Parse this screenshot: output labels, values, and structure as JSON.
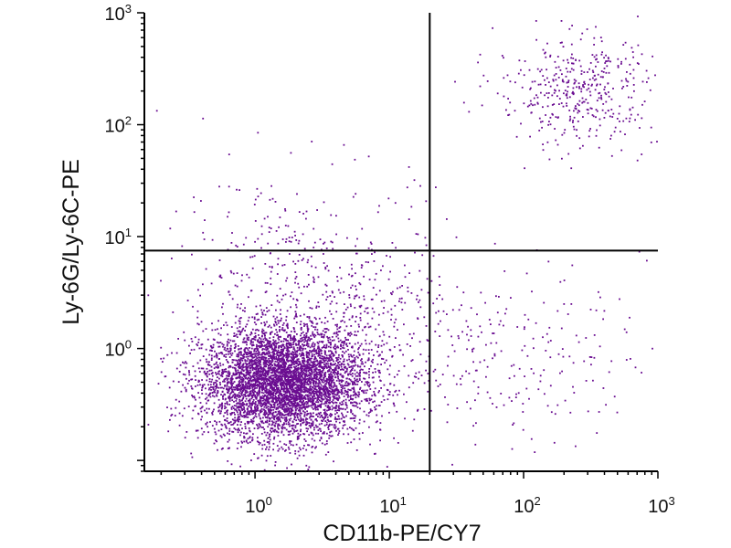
{
  "chart_data": {
    "type": "scatter",
    "title": "",
    "xlabel": "CD11b-PE/CY7",
    "ylabel": "Ly-6G/Ly-6C-PE",
    "x_scale": "log",
    "y_scale": "log",
    "xlim": [
      0.15,
      1000
    ],
    "ylim": [
      0.08,
      1000
    ],
    "xticks": [
      {
        "value": 1,
        "base": "10",
        "exp": "0"
      },
      {
        "value": 10,
        "base": "10",
        "exp": "1"
      },
      {
        "value": 100,
        "base": "10",
        "exp": "2"
      },
      {
        "value": 1000,
        "base": "10",
        "exp": "3"
      }
    ],
    "yticks": [
      {
        "value": 1,
        "base": "10",
        "exp": "0"
      },
      {
        "value": 10,
        "base": "10",
        "exp": "1"
      },
      {
        "value": 100,
        "base": "10",
        "exp": "2"
      },
      {
        "value": 1000,
        "base": "10",
        "exp": "3"
      }
    ],
    "gates": {
      "x": 20,
      "y": 7.5
    },
    "grid": false,
    "marker_color": "#6a0d91",
    "populations": [
      {
        "center": [
          1.6,
          0.5
        ],
        "spread": [
          0.55,
          0.45
        ],
        "count": 5000
      },
      {
        "center": [
          3.5,
          1.8
        ],
        "spread": [
          0.9,
          0.8
        ],
        "count": 600
      },
      {
        "center": [
          2,
          12
        ],
        "spread": [
          0.8,
          0.6
        ],
        "count": 110
      },
      {
        "center": [
          250,
          200
        ],
        "spread": [
          0.55,
          0.45
        ],
        "count": 420
      },
      {
        "center": [
          80,
          0.9
        ],
        "spread": [
          0.9,
          0.7
        ],
        "count": 220
      }
    ]
  }
}
